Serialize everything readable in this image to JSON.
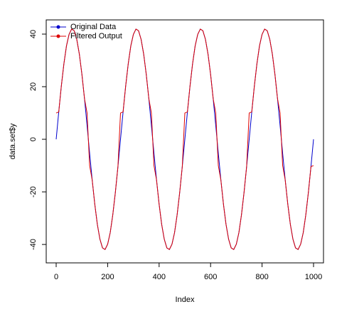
{
  "chart_data": {
    "type": "line",
    "xlabel": "Index",
    "ylabel": "data.set$y",
    "x": [
      0,
      10,
      20,
      30,
      40,
      50,
      60,
      70,
      80,
      90,
      100,
      110,
      120,
      130,
      140,
      150,
      160,
      170,
      180,
      190,
      200,
      210,
      220,
      230,
      240,
      250,
      260,
      270,
      280,
      290,
      300,
      310,
      320,
      330,
      340,
      350,
      360,
      370,
      380,
      390,
      400,
      410,
      420,
      430,
      440,
      450,
      460,
      470,
      480,
      490,
      500,
      510,
      520,
      530,
      540,
      550,
      560,
      570,
      580,
      590,
      600,
      610,
      620,
      630,
      640,
      650,
      660,
      670,
      680,
      690,
      700,
      710,
      720,
      730,
      740,
      750,
      760,
      770,
      780,
      790,
      800,
      810,
      820,
      830,
      840,
      850,
      860,
      870,
      880,
      890,
      900,
      910,
      920,
      930,
      940,
      950,
      960,
      970,
      980,
      990,
      1000
    ],
    "series": [
      {
        "name": "Original Data",
        "color": "#0000cd",
        "values": [
          0,
          10.4,
          20.2,
          28.7,
          35.5,
          39.9,
          41.9,
          41.3,
          38.0,
          32.4,
          24.7,
          15.5,
          5.3,
          -5.3,
          -15.5,
          -24.7,
          -32.4,
          -38.0,
          -41.3,
          -41.9,
          -39.9,
          -35.5,
          -28.7,
          -20.2,
          -10.4,
          0,
          10.4,
          20.2,
          28.7,
          35.5,
          39.9,
          41.9,
          41.3,
          38.0,
          32.4,
          24.7,
          15.5,
          5.3,
          -5.3,
          -15.5,
          -24.7,
          -32.4,
          -38.0,
          -41.3,
          -41.9,
          -39.9,
          -35.5,
          -28.7,
          -20.2,
          -10.4,
          0,
          10.4,
          20.2,
          28.7,
          35.5,
          39.9,
          41.9,
          41.3,
          38.0,
          32.4,
          24.7,
          15.5,
          5.3,
          -5.3,
          -15.5,
          -24.7,
          -32.4,
          -38.0,
          -41.3,
          -41.9,
          -39.9,
          -35.5,
          -28.7,
          -20.2,
          -10.4,
          0,
          10.4,
          20.2,
          28.7,
          35.5,
          39.9,
          41.9,
          41.3,
          38.0,
          32.4,
          24.7,
          15.5,
          5.3,
          -5.3,
          -15.5,
          -24.7,
          -32.4,
          -38.0,
          -41.3,
          -41.9,
          -39.9,
          -35.5,
          -28.7,
          -20.2,
          -10.4,
          0
        ]
      },
      {
        "name": "Filtered Output",
        "color": "#dd0000",
        "values": [
          10,
          10.4,
          20.2,
          28.7,
          35.5,
          39.9,
          41.9,
          41.3,
          38.0,
          32.4,
          24.7,
          15.5,
          10,
          -10,
          -15.5,
          -24.7,
          -32.4,
          -38.0,
          -41.3,
          -41.9,
          -39.9,
          -35.5,
          -28.7,
          -20.2,
          -10.4,
          10,
          10.4,
          20.2,
          28.7,
          35.5,
          39.9,
          41.9,
          41.3,
          38.0,
          32.4,
          24.7,
          15.5,
          10,
          -10,
          -15.5,
          -24.7,
          -32.4,
          -38.0,
          -41.3,
          -41.9,
          -39.9,
          -35.5,
          -28.7,
          -20.2,
          -10.4,
          10,
          10.4,
          20.2,
          28.7,
          35.5,
          39.9,
          41.9,
          41.3,
          38.0,
          32.4,
          24.7,
          15.5,
          10,
          -10,
          -15.5,
          -24.7,
          -32.4,
          -38.0,
          -41.3,
          -41.9,
          -39.9,
          -35.5,
          -28.7,
          -20.2,
          -10.4,
          10,
          10.4,
          20.2,
          28.7,
          35.5,
          39.9,
          41.9,
          41.3,
          38.0,
          32.4,
          24.7,
          15.5,
          10,
          -10,
          -15.5,
          -24.7,
          -32.4,
          -38.0,
          -41.3,
          -41.9,
          -39.9,
          -35.5,
          -28.7,
          -20.2,
          -10.4,
          -10
        ]
      }
    ],
    "xlim": [
      -38.7,
      1038.7
    ],
    "ylim": [
      -47.0,
      45.4
    ],
    "xticks": [
      0,
      200,
      400,
      600,
      800,
      1000
    ],
    "yticks": [
      -40,
      -20,
      0,
      20,
      40
    ],
    "legend": "top-left",
    "grid": false
  }
}
